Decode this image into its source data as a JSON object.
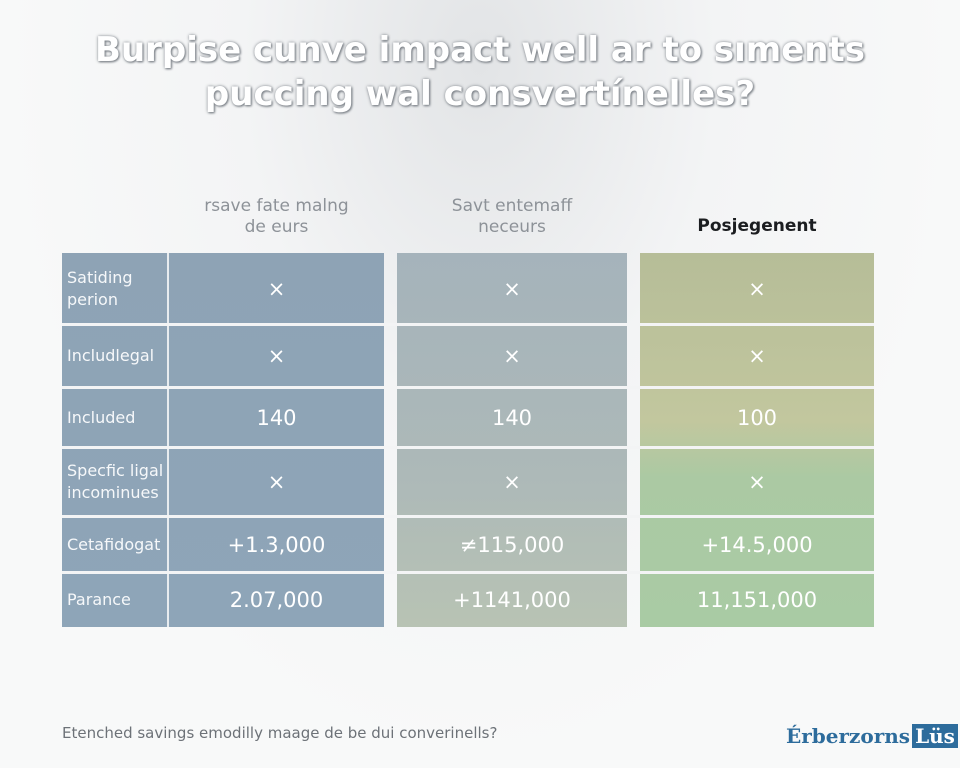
{
  "header": {
    "title": "Burpise cunve impact well ar to sıments\npuccing wal consvertínelles?"
  },
  "table": {
    "columns": [
      "rsave fate malng\nde eurs",
      "Savt entemaff\nneceurs",
      "Posjegenent"
    ],
    "rows": [
      {
        "label": "Satiding\nperion",
        "cells": [
          "×",
          "×",
          "×"
        ]
      },
      {
        "label": "Includlegal",
        "cells": [
          "×",
          "×",
          "×"
        ]
      },
      {
        "label": "Included",
        "cells": [
          140,
          140,
          100
        ]
      },
      {
        "label": "Specfic ligal\nincominues",
        "cells": [
          "×",
          "×",
          "×"
        ]
      },
      {
        "label": "Cetafidogat",
        "cells": [
          "+1.3,000",
          "≠115,000",
          "+14.5,000"
        ]
      },
      {
        "label": "Parance",
        "cells": [
          "2.07,000",
          "+1141,000",
          "11,151,000"
        ]
      }
    ]
  },
  "footer": {
    "note": "Etenched savings emodilly maage de be dui converinells?",
    "logo": "Érberzorns",
    "logo_badge": "Lüs"
  }
}
